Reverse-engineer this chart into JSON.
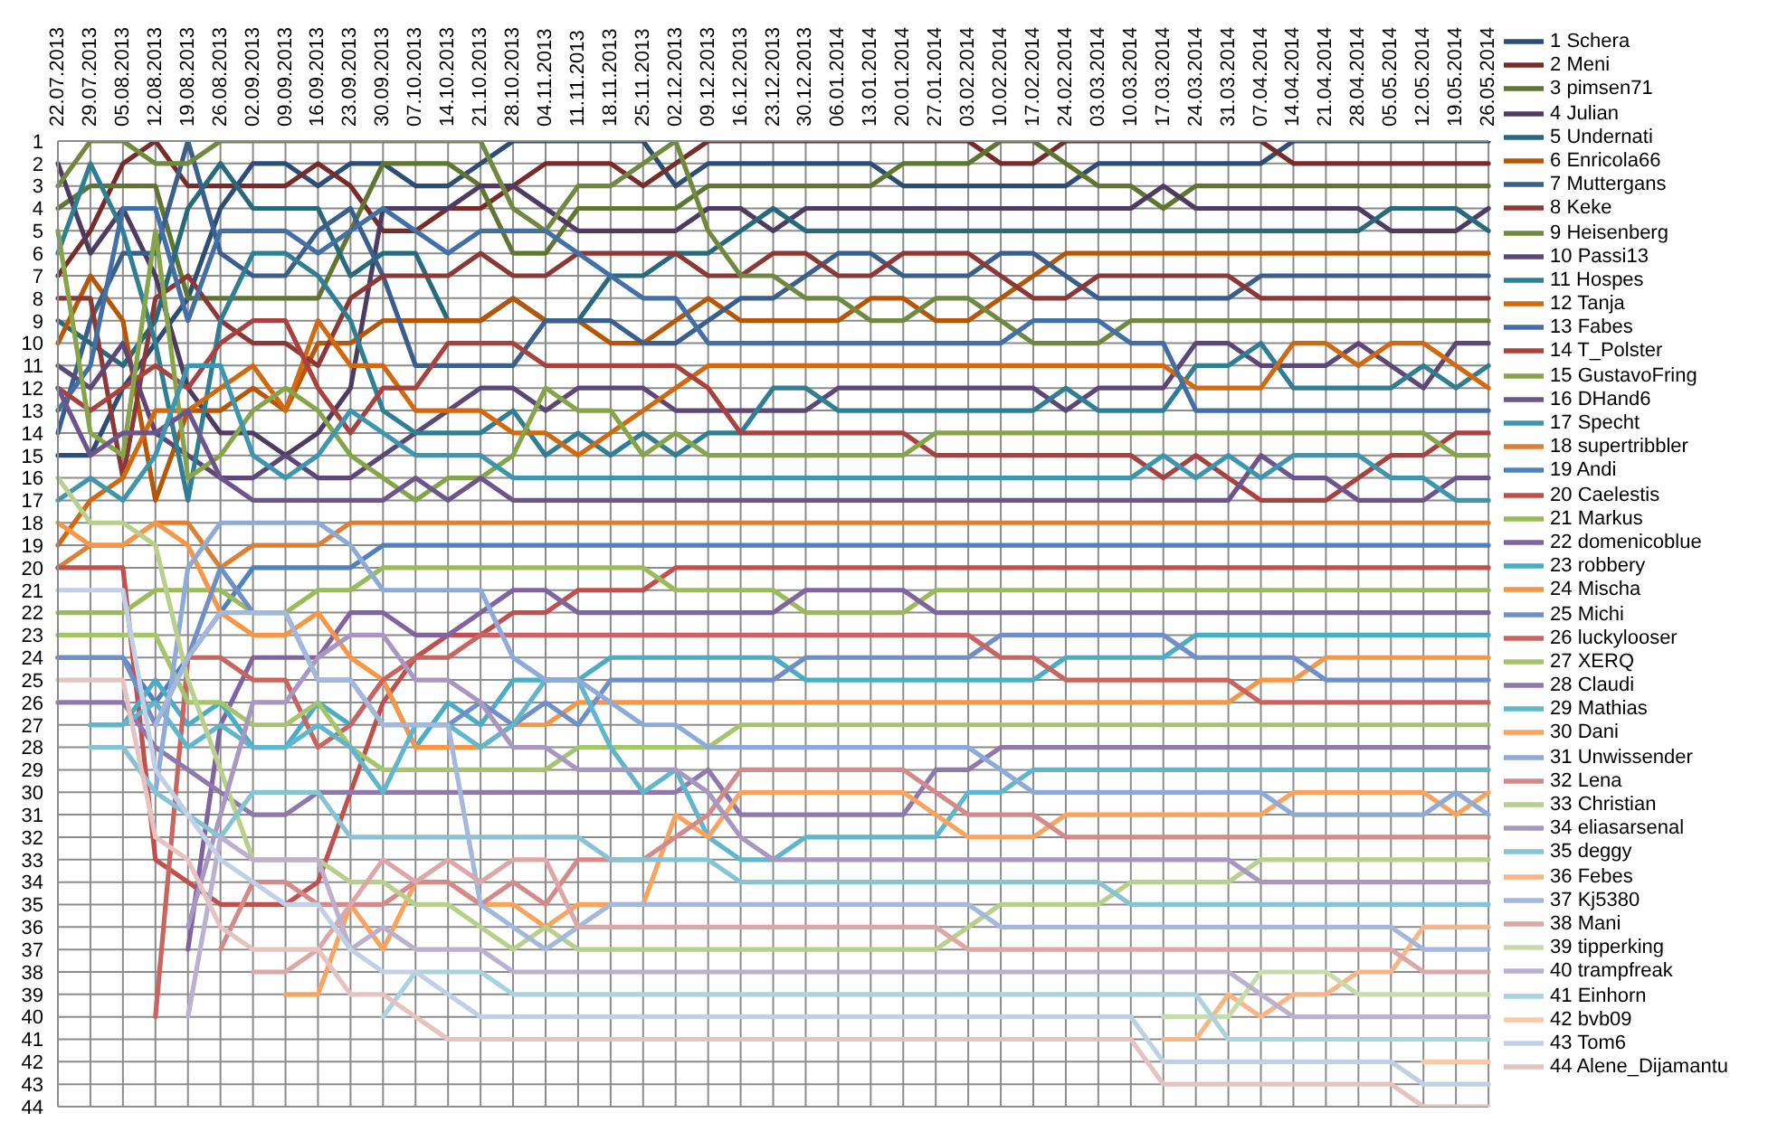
{
  "chart_data": {
    "type": "line",
    "categories": [
      "22.07.2013",
      "29.07.2013",
      "05.08.2013",
      "12.08.2013",
      "19.08.2013",
      "26.08.2013",
      "02.09.2013",
      "09.09.2013",
      "16.09.2013",
      "23.09.2013",
      "30.09.2013",
      "07.10.2013",
      "14.10.2013",
      "21.10.2013",
      "28.10.2013",
      "04.11.2013",
      "11.11.2013",
      "18.11.2013",
      "25.11.2013",
      "02.12.2013",
      "09.12.2013",
      "16.12.2013",
      "23.12.2013",
      "30.12.2013",
      "06.01.2014",
      "13.01.2014",
      "20.01.2014",
      "27.01.2014",
      "03.02.2014",
      "10.02.2014",
      "17.02.2014",
      "24.02.2014",
      "03.03.2014",
      "10.03.2014",
      "17.03.2014",
      "24.03.2014",
      "31.03.2014",
      "07.04.2014",
      "14.04.2014",
      "21.04.2014",
      "28.04.2014",
      "05.05.2014",
      "12.05.2014",
      "19.05.2014",
      "26.05.2014"
    ],
    "ylim": [
      44,
      1
    ],
    "yticks": [
      1,
      2,
      3,
      4,
      5,
      6,
      7,
      8,
      9,
      10,
      11,
      12,
      13,
      14,
      15,
      16,
      17,
      18,
      19,
      20,
      21,
      22,
      23,
      24,
      25,
      26,
      27,
      28,
      29,
      30,
      31,
      32,
      33,
      34,
      35,
      36,
      37,
      38,
      39,
      40,
      41,
      42,
      43,
      44
    ],
    "grid": true,
    "legend": "right",
    "line_style": "solid",
    "series": [
      {
        "name": "1 Schera",
        "color": "#2c4d75",
        "values": [
          15,
          15,
          12,
          10,
          8,
          4,
          2,
          2,
          3,
          2,
          2,
          3,
          3,
          2,
          1,
          1,
          1,
          1,
          1,
          3,
          2,
          2,
          2,
          2,
          2,
          2,
          3,
          3,
          3,
          3,
          3,
          3,
          2,
          2,
          2,
          2,
          2,
          2,
          1,
          1,
          1,
          1,
          1,
          1,
          1
        ]
      },
      {
        "name": "2 Meni",
        "color": "#772c2a",
        "values": [
          7,
          5,
          2,
          1,
          3,
          3,
          3,
          3,
          2,
          3,
          5,
          5,
          4,
          4,
          3,
          2,
          2,
          2,
          3,
          2,
          1,
          1,
          1,
          1,
          1,
          1,
          1,
          1,
          1,
          2,
          2,
          1,
          1,
          1,
          1,
          1,
          1,
          1,
          2,
          2,
          2,
          2,
          2,
          2,
          2
        ]
      },
      {
        "name": "3 pimsen71",
        "color": "#5f7530",
        "values": [
          4,
          3,
          3,
          3,
          8,
          8,
          8,
          8,
          8,
          5,
          2,
          2,
          2,
          3,
          6,
          6,
          4,
          4,
          4,
          4,
          3,
          3,
          3,
          3,
          3,
          3,
          2,
          2,
          2,
          1,
          1,
          2,
          3,
          3,
          4,
          3,
          3,
          3,
          3,
          3,
          3,
          3,
          3,
          3,
          3
        ]
      },
      {
        "name": "4 Julian",
        "color": "#4d3b62",
        "values": [
          2,
          6,
          4,
          7,
          12,
          14,
          14,
          15,
          14,
          12,
          4,
          4,
          4,
          3,
          3,
          4,
          5,
          5,
          5,
          5,
          4,
          4,
          5,
          4,
          4,
          4,
          4,
          4,
          4,
          4,
          4,
          4,
          4,
          4,
          3,
          4,
          4,
          4,
          4,
          4,
          4,
          5,
          5,
          5,
          4
        ]
      },
      {
        "name": "5 Undernati",
        "color": "#276a7c",
        "values": [
          9,
          10,
          11,
          9,
          4,
          2,
          4,
          4,
          4,
          7,
          6,
          6,
          9,
          9,
          8,
          9,
          9,
          7,
          7,
          6,
          6,
          5,
          4,
          5,
          5,
          5,
          5,
          5,
          5,
          5,
          5,
          5,
          5,
          5,
          5,
          5,
          5,
          5,
          5,
          5,
          5,
          4,
          4,
          4,
          5
        ]
      },
      {
        "name": "6 Enricola66",
        "color": "#b65708",
        "values": [
          10,
          7,
          9,
          17,
          13,
          13,
          12,
          13,
          10,
          10,
          9,
          9,
          9,
          9,
          8,
          9,
          9,
          10,
          10,
          9,
          8,
          9,
          9,
          9,
          9,
          8,
          8,
          9,
          9,
          8,
          7,
          6,
          6,
          6,
          6,
          6,
          6,
          6,
          6,
          6,
          6,
          6,
          6,
          6,
          6
        ]
      },
      {
        "name": "7 Muttergans",
        "color": "#3a5f8b",
        "values": [
          14,
          9,
          6,
          6,
          1,
          6,
          7,
          7,
          5,
          4,
          7,
          11,
          11,
          11,
          11,
          9,
          9,
          9,
          10,
          10,
          9,
          8,
          8,
          7,
          6,
          6,
          7,
          7,
          7,
          6,
          6,
          7,
          8,
          8,
          8,
          8,
          8,
          7,
          7,
          7,
          7,
          7,
          7,
          7,
          7
        ]
      },
      {
        "name": "8 Keke",
        "color": "#8c3836",
        "values": [
          8,
          8,
          16,
          8,
          7,
          9,
          10,
          10,
          11,
          8,
          7,
          7,
          7,
          6,
          7,
          7,
          6,
          6,
          6,
          6,
          7,
          7,
          6,
          6,
          7,
          7,
          6,
          6,
          6,
          7,
          8,
          8,
          7,
          7,
          7,
          7,
          7,
          8,
          8,
          8,
          8,
          8,
          8,
          8,
          8
        ]
      },
      {
        "name": "9 Heisenberg",
        "color": "#71893f",
        "values": [
          3,
          1,
          1,
          2,
          2,
          1,
          1,
          1,
          1,
          1,
          1,
          1,
          1,
          1,
          4,
          5,
          3,
          3,
          2,
          1,
          5,
          7,
          7,
          8,
          8,
          9,
          9,
          8,
          8,
          9,
          10,
          10,
          10,
          9,
          9,
          9,
          9,
          9,
          9,
          9,
          9,
          9,
          9,
          9,
          9
        ]
      },
      {
        "name": "10 Passi13",
        "color": "#5c4776",
        "values": [
          11,
          12,
          10,
          14,
          15,
          16,
          16,
          15,
          16,
          16,
          15,
          14,
          13,
          12,
          12,
          13,
          12,
          12,
          12,
          13,
          13,
          13,
          13,
          13,
          12,
          12,
          12,
          12,
          12,
          12,
          12,
          13,
          12,
          12,
          12,
          10,
          10,
          11,
          11,
          11,
          10,
          11,
          12,
          10,
          10
        ]
      },
      {
        "name": "11 Hospes",
        "color": "#2f7e93",
        "values": [
          6,
          2,
          5,
          10,
          17,
          9,
          6,
          6,
          7,
          9,
          13,
          14,
          14,
          14,
          13,
          15,
          14,
          15,
          14,
          15,
          14,
          14,
          12,
          12,
          13,
          13,
          13,
          13,
          13,
          13,
          13,
          12,
          13,
          13,
          13,
          11,
          11,
          10,
          12,
          12,
          12,
          12,
          11,
          12,
          11
        ]
      },
      {
        "name": "12 Tanja",
        "color": "#d0690f",
        "values": [
          19,
          17,
          16,
          13,
          13,
          12,
          11,
          13,
          9,
          11,
          11,
          13,
          13,
          13,
          14,
          14,
          15,
          14,
          13,
          12,
          11,
          11,
          11,
          11,
          11,
          11,
          11,
          11,
          11,
          11,
          11,
          11,
          11,
          11,
          11,
          12,
          12,
          12,
          10,
          10,
          11,
          10,
          10,
          11,
          12
        ]
      },
      {
        "name": "13 Fabes",
        "color": "#416fa6",
        "values": [
          13,
          11,
          4,
          4,
          9,
          5,
          5,
          5,
          6,
          5,
          4,
          5,
          6,
          5,
          5,
          5,
          6,
          7,
          8,
          8,
          10,
          10,
          10,
          10,
          10,
          10,
          10,
          10,
          10,
          10,
          9,
          9,
          9,
          10,
          10,
          13,
          13,
          13,
          13,
          13,
          13,
          13,
          13,
          13,
          13
        ]
      },
      {
        "name": "14 T_Polster",
        "color": "#a8423f",
        "values": [
          12,
          13,
          12,
          11,
          12,
          10,
          9,
          9,
          12,
          14,
          12,
          12,
          10,
          10,
          10,
          11,
          11,
          11,
          11,
          11,
          12,
          14,
          14,
          14,
          14,
          14,
          14,
          15,
          15,
          15,
          15,
          15,
          15,
          15,
          16,
          15,
          16,
          17,
          17,
          17,
          16,
          15,
          15,
          14,
          14
        ]
      },
      {
        "name": "15 GustavoFring",
        "color": "#86a44a",
        "values": [
          5,
          14,
          15,
          5,
          16,
          15,
          13,
          12,
          13,
          15,
          16,
          17,
          16,
          16,
          15,
          12,
          13,
          13,
          15,
          14,
          15,
          15,
          15,
          15,
          15,
          15,
          15,
          14,
          14,
          14,
          14,
          14,
          14,
          14,
          14,
          14,
          14,
          14,
          14,
          14,
          14,
          14,
          14,
          15,
          15
        ]
      },
      {
        "name": "16 DHand6",
        "color": "#6e548d",
        "values": [
          12,
          15,
          14,
          14,
          13,
          16,
          17,
          17,
          17,
          17,
          17,
          16,
          17,
          16,
          17,
          17,
          17,
          17,
          17,
          17,
          17,
          17,
          17,
          17,
          17,
          17,
          17,
          17,
          17,
          17,
          17,
          17,
          17,
          17,
          17,
          17,
          17,
          15,
          16,
          16,
          17,
          17,
          17,
          16,
          16
        ]
      },
      {
        "name": "17 Specht",
        "color": "#3d96ae",
        "values": [
          17,
          16,
          17,
          15,
          11,
          11,
          15,
          16,
          15,
          13,
          14,
          15,
          15,
          15,
          16,
          16,
          16,
          16,
          16,
          16,
          16,
          16,
          16,
          16,
          16,
          16,
          16,
          16,
          16,
          16,
          16,
          16,
          16,
          16,
          15,
          16,
          15,
          16,
          15,
          15,
          15,
          16,
          16,
          17,
          17
        ]
      },
      {
        "name": "18 supertribbler",
        "color": "#da8137",
        "values": [
          20,
          19,
          19,
          18,
          18,
          20,
          19,
          19,
          19,
          18,
          18,
          18,
          18,
          18,
          18,
          18,
          18,
          18,
          18,
          18,
          18,
          18,
          18,
          18,
          18,
          18,
          18,
          18,
          18,
          18,
          18,
          18,
          18,
          18,
          18,
          18,
          18,
          18,
          18,
          18,
          18,
          18,
          18,
          18,
          18
        ]
      },
      {
        "name": "19 Andi",
        "color": "#4f81bd",
        "values": [
          24,
          24,
          24,
          26,
          24,
          22,
          20,
          20,
          20,
          20,
          19,
          19,
          19,
          19,
          19,
          19,
          19,
          19,
          19,
          19,
          19,
          19,
          19,
          19,
          19,
          19,
          19,
          19,
          19,
          19,
          19,
          19,
          19,
          19,
          19,
          19,
          19,
          19,
          19,
          19,
          19,
          19,
          19,
          19,
          19
        ]
      },
      {
        "name": "20 Caelestis",
        "color": "#c0504d",
        "values": [
          20,
          20,
          20,
          33,
          34,
          35,
          35,
          35,
          34,
          30,
          26,
          24,
          23,
          23,
          22,
          22,
          21,
          21,
          21,
          20,
          20,
          20,
          20,
          20,
          20,
          20,
          20,
          20,
          20,
          20,
          20,
          20,
          20,
          20,
          20,
          20,
          20,
          20,
          20,
          20,
          20,
          20,
          20,
          20,
          20
        ]
      },
      {
        "name": "21 Markus",
        "color": "#9bbb59",
        "values": [
          22,
          22,
          22,
          21,
          21,
          21,
          22,
          22,
          21,
          21,
          20,
          20,
          20,
          20,
          20,
          20,
          20,
          20,
          20,
          21,
          21,
          21,
          21,
          22,
          22,
          22,
          22,
          21,
          21,
          21,
          21,
          21,
          21,
          21,
          21,
          21,
          21,
          21,
          21,
          21,
          21,
          21,
          21,
          21,
          21
        ]
      },
      {
        "name": "22 domenicoblue",
        "color": "#8064a2",
        "values": [
          null,
          null,
          null,
          null,
          37,
          27,
          24,
          24,
          24,
          22,
          22,
          23,
          23,
          22,
          21,
          21,
          22,
          22,
          22,
          22,
          22,
          22,
          22,
          21,
          21,
          21,
          21,
          22,
          22,
          22,
          22,
          22,
          22,
          22,
          22,
          22,
          22,
          22,
          22,
          22,
          22,
          22,
          22,
          22,
          22
        ]
      },
      {
        "name": "23 robbery",
        "color": "#4bacc6",
        "values": [
          null,
          27,
          27,
          25,
          27,
          26,
          28,
          28,
          26,
          27,
          25,
          28,
          26,
          27,
          25,
          25,
          25,
          24,
          24,
          24,
          24,
          24,
          24,
          25,
          25,
          25,
          25,
          25,
          25,
          25,
          25,
          24,
          24,
          24,
          24,
          23,
          23,
          23,
          23,
          23,
          23,
          23,
          23,
          23,
          23
        ]
      },
      {
        "name": "24 Mischa",
        "color": "#f79646",
        "values": [
          18,
          19,
          19,
          18,
          19,
          22,
          23,
          23,
          22,
          24,
          25,
          28,
          28,
          28,
          27,
          27,
          26,
          26,
          26,
          26,
          26,
          26,
          26,
          26,
          26,
          26,
          26,
          26,
          26,
          26,
          26,
          26,
          26,
          26,
          26,
          26,
          26,
          25,
          25,
          24,
          24,
          24,
          24,
          24,
          24
        ]
      },
      {
        "name": "25 Michi",
        "color": "#6f8fc9",
        "values": [
          24,
          24,
          24,
          27,
          24,
          20,
          22,
          22,
          25,
          25,
          27,
          27,
          27,
          26,
          27,
          26,
          27,
          25,
          25,
          25,
          25,
          25,
          25,
          24,
          24,
          24,
          24,
          24,
          24,
          23,
          23,
          23,
          23,
          23,
          23,
          24,
          24,
          24,
          24,
          25,
          25,
          25,
          25,
          25,
          25
        ]
      },
      {
        "name": "26 luckylooser",
        "color": "#c96461",
        "values": [
          null,
          null,
          null,
          40,
          24,
          24,
          25,
          25,
          28,
          27,
          25,
          24,
          24,
          23,
          23,
          23,
          23,
          23,
          23,
          23,
          23,
          23,
          23,
          23,
          23,
          23,
          23,
          23,
          23,
          24,
          24,
          25,
          25,
          25,
          25,
          25,
          25,
          26,
          26,
          26,
          26,
          26,
          26,
          26,
          26
        ]
      },
      {
        "name": "27 XERQ",
        "color": "#a6c46b",
        "values": [
          23,
          23,
          23,
          23,
          26,
          26,
          27,
          27,
          26,
          28,
          29,
          29,
          29,
          29,
          29,
          29,
          28,
          28,
          28,
          28,
          28,
          27,
          27,
          27,
          27,
          27,
          27,
          27,
          27,
          27,
          27,
          27,
          27,
          27,
          27,
          27,
          27,
          27,
          27,
          27,
          27,
          27,
          27,
          27,
          27
        ]
      },
      {
        "name": "28 Claudi",
        "color": "#8f78ac",
        "values": [
          26,
          26,
          26,
          28,
          29,
          30,
          31,
          31,
          30,
          30,
          30,
          30,
          30,
          30,
          30,
          30,
          30,
          30,
          30,
          30,
          29,
          31,
          31,
          31,
          31,
          31,
          31,
          29,
          29,
          28,
          28,
          28,
          28,
          28,
          28,
          28,
          28,
          28,
          28,
          28,
          28,
          28,
          28,
          28,
          28
        ]
      },
      {
        "name": "29 Mathias",
        "color": "#5fb6cd",
        "values": [
          null,
          27,
          27,
          26,
          28,
          27,
          28,
          28,
          27,
          28,
          30,
          27,
          27,
          28,
          27,
          25,
          25,
          28,
          30,
          29,
          32,
          33,
          33,
          32,
          32,
          32,
          32,
          32,
          30,
          30,
          29,
          29,
          29,
          29,
          29,
          29,
          29,
          29,
          29,
          29,
          29,
          29,
          29,
          29,
          29
        ]
      },
      {
        "name": "30 Dani",
        "color": "#f9a35f",
        "values": [
          null,
          null,
          null,
          null,
          null,
          null,
          null,
          39,
          39,
          35,
          37,
          34,
          34,
          35,
          35,
          36,
          35,
          35,
          35,
          31,
          32,
          30,
          30,
          30,
          30,
          30,
          30,
          31,
          32,
          32,
          32,
          31,
          31,
          31,
          31,
          31,
          31,
          31,
          30,
          30,
          30,
          30,
          30,
          31,
          30
        ]
      },
      {
        "name": "31 Unwissender",
        "color": "#8eaad6",
        "values": [
          null,
          null,
          null,
          30,
          20,
          18,
          18,
          18,
          18,
          19,
          21,
          21,
          21,
          21,
          24,
          25,
          25,
          26,
          27,
          27,
          28,
          28,
          28,
          28,
          28,
          28,
          28,
          28,
          28,
          29,
          30,
          30,
          30,
          30,
          30,
          30,
          30,
          30,
          31,
          31,
          31,
          31,
          31,
          30,
          31
        ]
      },
      {
        "name": "32 Lena",
        "color": "#d48a88",
        "values": [
          null,
          null,
          null,
          null,
          null,
          37,
          34,
          34,
          35,
          35,
          35,
          34,
          34,
          35,
          34,
          35,
          33,
          33,
          33,
          32,
          31,
          29,
          29,
          29,
          29,
          29,
          29,
          30,
          31,
          31,
          31,
          32,
          32,
          32,
          32,
          32,
          32,
          32,
          32,
          32,
          32,
          32,
          32,
          32,
          32
        ]
      },
      {
        "name": "33 Christian",
        "color": "#b9d08c",
        "values": [
          16,
          18,
          18,
          19,
          25,
          29,
          33,
          33,
          33,
          34,
          34,
          35,
          35,
          36,
          37,
          36,
          37,
          37,
          37,
          37,
          37,
          37,
          37,
          37,
          37,
          37,
          37,
          37,
          36,
          35,
          35,
          35,
          35,
          34,
          34,
          34,
          34,
          33,
          33,
          33,
          33,
          33,
          33,
          33,
          33
        ]
      },
      {
        "name": "34 eliasarsenal",
        "color": "#a897c0",
        "values": [
          null,
          null,
          null,
          null,
          36,
          31,
          26,
          26,
          24,
          23,
          23,
          25,
          25,
          26,
          28,
          28,
          29,
          29,
          29,
          29,
          30,
          32,
          33,
          33,
          33,
          33,
          33,
          33,
          33,
          33,
          33,
          33,
          33,
          33,
          33,
          33,
          33,
          34,
          34,
          34,
          34,
          34,
          34,
          34,
          34
        ]
      },
      {
        "name": "35 deggy",
        "color": "#86c3d4",
        "values": [
          null,
          28,
          28,
          30,
          31,
          32,
          30,
          30,
          30,
          32,
          32,
          32,
          32,
          32,
          32,
          32,
          32,
          33,
          33,
          33,
          33,
          34,
          34,
          34,
          34,
          34,
          34,
          34,
          34,
          34,
          34,
          34,
          34,
          35,
          35,
          35,
          35,
          35,
          35,
          35,
          35,
          35,
          35,
          35,
          35
        ]
      },
      {
        "name": "36 Febes",
        "color": "#fab587",
        "values": [
          null,
          null,
          null,
          null,
          null,
          null,
          null,
          null,
          null,
          null,
          null,
          null,
          null,
          null,
          null,
          null,
          null,
          null,
          null,
          null,
          null,
          null,
          null,
          null,
          null,
          null,
          null,
          null,
          null,
          null,
          null,
          null,
          null,
          null,
          41,
          41,
          39,
          40,
          39,
          39,
          38,
          38,
          36,
          36,
          36
        ]
      },
      {
        "name": "37 Kj5380",
        "color": "#a3b8dc",
        "values": [
          null,
          null,
          null,
          27,
          24,
          22,
          22,
          22,
          25,
          25,
          27,
          27,
          27,
          35,
          36,
          37,
          36,
          35,
          35,
          35,
          35,
          35,
          35,
          35,
          35,
          35,
          35,
          35,
          35,
          36,
          36,
          36,
          36,
          36,
          36,
          36,
          36,
          36,
          36,
          36,
          36,
          36,
          37,
          37,
          37
        ]
      },
      {
        "name": "38 Mani",
        "color": "#dca8a7",
        "values": [
          null,
          null,
          null,
          null,
          null,
          null,
          38,
          38,
          37,
          35,
          33,
          34,
          33,
          34,
          33,
          33,
          36,
          36,
          36,
          36,
          36,
          36,
          36,
          36,
          36,
          36,
          36,
          36,
          37,
          37,
          37,
          37,
          37,
          37,
          37,
          37,
          37,
          37,
          37,
          37,
          37,
          37,
          38,
          38,
          38
        ]
      },
      {
        "name": "39 tipperking",
        "color": "#c9dbab",
        "values": [
          null,
          null,
          null,
          null,
          null,
          null,
          null,
          null,
          null,
          null,
          null,
          null,
          null,
          null,
          null,
          null,
          null,
          null,
          null,
          null,
          null,
          null,
          null,
          null,
          null,
          null,
          null,
          null,
          null,
          null,
          null,
          null,
          null,
          null,
          40,
          40,
          40,
          38,
          38,
          38,
          39,
          39,
          39,
          39,
          39
        ]
      },
      {
        "name": "40 trampfreak",
        "color": "#bcb0cf",
        "values": [
          null,
          null,
          null,
          null,
          40,
          32,
          33,
          33,
          33,
          37,
          36,
          37,
          37,
          37,
          38,
          38,
          38,
          38,
          38,
          38,
          38,
          38,
          38,
          38,
          38,
          38,
          38,
          38,
          38,
          38,
          38,
          38,
          38,
          38,
          38,
          38,
          38,
          39,
          40,
          40,
          40,
          40,
          40,
          40,
          40
        ]
      },
      {
        "name": "41 Einhorn",
        "color": "#a9d3df",
        "values": [
          null,
          null,
          null,
          null,
          null,
          null,
          null,
          null,
          null,
          null,
          40,
          38,
          38,
          38,
          39,
          39,
          39,
          39,
          39,
          39,
          39,
          39,
          39,
          39,
          39,
          39,
          39,
          39,
          39,
          39,
          39,
          39,
          39,
          39,
          39,
          39,
          41,
          41,
          41,
          41,
          41,
          41,
          41,
          41,
          41
        ]
      },
      {
        "name": "42 bvb09",
        "color": "#fcc8a8",
        "values": [
          null,
          null,
          null,
          null,
          null,
          null,
          null,
          null,
          null,
          null,
          null,
          null,
          null,
          null,
          null,
          null,
          null,
          null,
          null,
          null,
          null,
          null,
          null,
          null,
          null,
          null,
          null,
          null,
          null,
          null,
          null,
          null,
          null,
          null,
          null,
          null,
          null,
          null,
          null,
          null,
          null,
          null,
          42,
          42,
          42
        ]
      },
      {
        "name": "43 Tom6",
        "color": "#c2d0e6",
        "values": [
          21,
          21,
          21,
          29,
          31,
          33,
          34,
          35,
          35,
          37,
          38,
          38,
          39,
          40,
          40,
          40,
          40,
          40,
          40,
          40,
          40,
          40,
          40,
          40,
          40,
          40,
          40,
          40,
          40,
          40,
          40,
          40,
          40,
          40,
          42,
          42,
          42,
          42,
          42,
          42,
          42,
          42,
          43,
          43,
          43
        ]
      },
      {
        "name": "44 Alene_Dijamantu",
        "color": "#e5c3c2",
        "values": [
          25,
          25,
          25,
          32,
          33,
          36,
          37,
          37,
          37,
          39,
          39,
          40,
          41,
          41,
          41,
          41,
          41,
          41,
          41,
          41,
          41,
          41,
          41,
          41,
          41,
          41,
          41,
          41,
          41,
          41,
          41,
          41,
          41,
          41,
          43,
          43,
          43,
          43,
          43,
          43,
          43,
          43,
          44,
          44,
          44
        ]
      }
    ]
  }
}
